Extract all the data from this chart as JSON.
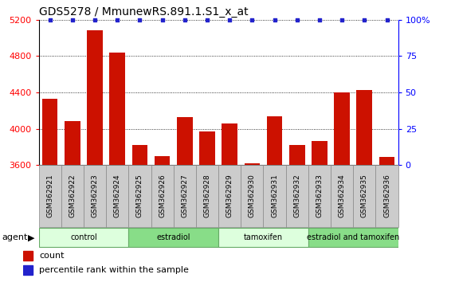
{
  "title": "GDS5278 / MmunewRS.891.1.S1_x_at",
  "samples": [
    "GSM362921",
    "GSM362922",
    "GSM362923",
    "GSM362924",
    "GSM362925",
    "GSM362926",
    "GSM362927",
    "GSM362928",
    "GSM362929",
    "GSM362930",
    "GSM362931",
    "GSM362932",
    "GSM362933",
    "GSM362934",
    "GSM362935",
    "GSM362936"
  ],
  "values": [
    4330,
    4080,
    5080,
    4840,
    3820,
    3700,
    4130,
    3970,
    4060,
    3620,
    4140,
    3820,
    3860,
    4400,
    4430,
    3690
  ],
  "bar_color": "#cc1100",
  "dot_color": "#2222cc",
  "ylim": [
    3600,
    5200
  ],
  "y_ticks": [
    3600,
    4000,
    4400,
    4800,
    5200
  ],
  "right_ylim": [
    0,
    100
  ],
  "right_ticks": [
    0,
    25,
    50,
    75,
    100
  ],
  "right_tick_labels": [
    "0",
    "25",
    "50",
    "75",
    "100%"
  ],
  "groups": [
    {
      "label": "control",
      "start": 0,
      "end": 4,
      "color": "#ddffdd"
    },
    {
      "label": "estradiol",
      "start": 4,
      "end": 8,
      "color": "#88dd88"
    },
    {
      "label": "tamoxifen",
      "start": 8,
      "end": 12,
      "color": "#ddffdd"
    },
    {
      "label": "estradiol and tamoxifen",
      "start": 12,
      "end": 16,
      "color": "#88dd88"
    }
  ],
  "agent_label": "agent",
  "legend_count_label": "count",
  "legend_pct_label": "percentile rank within the sample",
  "title_fontsize": 10,
  "tick_label_fontsize": 6.5,
  "bar_width": 0.7,
  "sample_area_color": "#cccccc"
}
